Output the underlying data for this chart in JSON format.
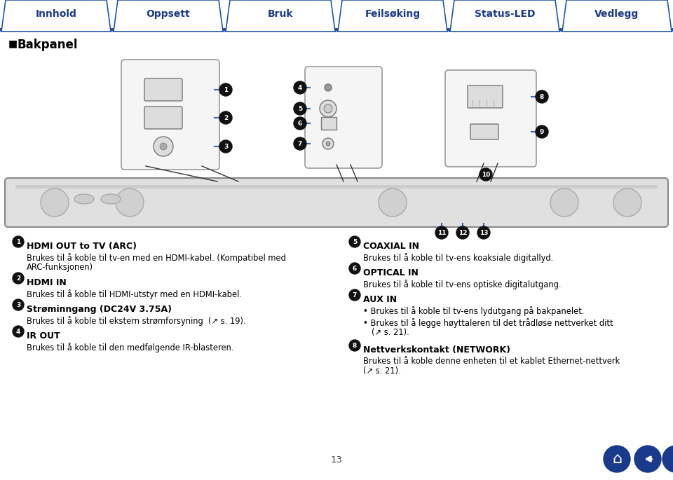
{
  "bg_color": "#ffffff",
  "nav_bg": "#ffffff",
  "nav_border_color": "#2255aa",
  "nav_tabs": [
    "Innhold",
    "Oppsett",
    "Bruk",
    "Feilsøking",
    "Status-LED",
    "Vedlegg"
  ],
  "nav_tab_color": "#ffffff",
  "nav_tab_border": "#2255aa",
  "nav_bar_line_color": "#2255aa",
  "title_text": "Bakpanel",
  "title_color": "#000000",
  "title_fontsize": 12,
  "page_number": "13",
  "text_color": "#000000",
  "left_items": [
    {
      "num": "1",
      "heading": "HDMI OUT to TV (ARC)",
      "body": "Brukes til å koble til tv-en med en HDMI-kabel. (Kompatibel med\nARC-funksjonen)"
    },
    {
      "num": "2",
      "heading": "HDMI IN",
      "body": "Brukes til å koble til HDMI-utstyr med en HDMI-kabel."
    },
    {
      "num": "3",
      "heading": "Strøminngang (DC24V 3.75A)",
      "body": "Brukes til å koble til ekstern strømforsyning  (↗ s. 19)."
    },
    {
      "num": "4",
      "heading": "IR OUT",
      "body": "Brukes til å koble til den medfølgende IR-blasteren."
    }
  ],
  "right_items": [
    {
      "num": "5",
      "heading": "COAXIAL IN",
      "body": "Brukes til å koble til tv-ens koaksiale digitallyd."
    },
    {
      "num": "6",
      "heading": "OPTICAL IN",
      "body": "Brukes til å koble til tv-ens optiske digitalutgang."
    },
    {
      "num": "7",
      "heading": "AUX IN",
      "body_bullets": [
        "Brukes til å koble til tv-ens lydutgang på bakpanelet.",
        "Brukes til å legge høyttaleren til det trådløse nettverket ditt\n(↗ s. 21)."
      ]
    },
    {
      "num": "8",
      "heading": "Nettverkskontakt (NETWORK)",
      "body": "Brukes til å koble denne enheten til et kablet Ethernet-nettverk\n(↗ s. 21)."
    }
  ],
  "blue": "#3366bb",
  "dark": "#111111",
  "btn_color": "#1a3a8c",
  "nav_font_color": "#1a3a8c"
}
